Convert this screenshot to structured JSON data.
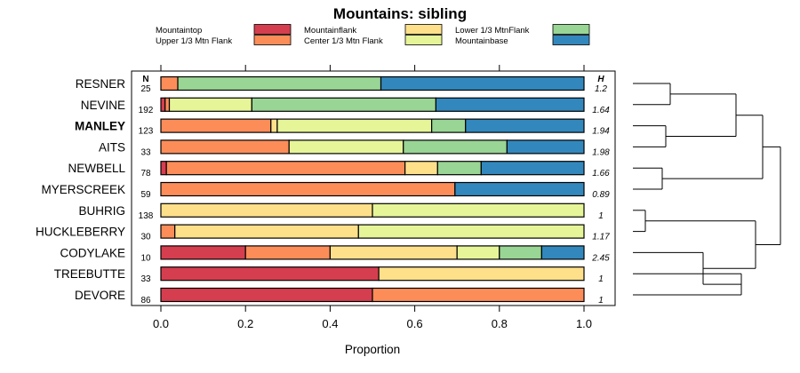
{
  "chart_data": {
    "type": "bar",
    "subtype": "stacked-horizontal-proportion",
    "title": "Mountains: sibling",
    "xlabel": "Proportion",
    "xlim": [
      0,
      1
    ],
    "x_ticks": [
      "0.0",
      "0.2",
      "0.4",
      "0.6",
      "0.8",
      "1.0"
    ],
    "x_tick_values": [
      0,
      0.2,
      0.4,
      0.6,
      0.8,
      1.0
    ],
    "n_header": "N",
    "h_header": "H",
    "legend": [
      {
        "name": "Mountaintop",
        "color": "#d53e4f"
      },
      {
        "name": "Upper 1/3 Mtn Flank",
        "color": "#fc8d59"
      },
      {
        "name": "Mountainflank",
        "color": "#fee08b"
      },
      {
        "name": "Center 1/3 Mtn Flank",
        "color": "#e6f598"
      },
      {
        "name": "Lower 1/3 MtnFlank",
        "color": "#99d594"
      },
      {
        "name": "Mountainbase",
        "color": "#3288bd"
      }
    ],
    "categories_order": [
      "Mountaintop",
      "Upper 1/3 Mtn Flank",
      "Mountainflank",
      "Center 1/3 Mtn Flank",
      "Lower 1/3 MtnFlank",
      "Mountainbase"
    ],
    "rows": [
      {
        "label": "RESNER",
        "bold": false,
        "n": "25",
        "h": "1.2",
        "values": [
          0,
          0.04,
          0,
          0,
          0.48,
          0.48
        ]
      },
      {
        "label": "NEVINE",
        "bold": false,
        "n": "192",
        "h": "1.64",
        "values": [
          0.01,
          0.01,
          0,
          0.195,
          0.435,
          0.35
        ]
      },
      {
        "label": "MANLEY",
        "bold": true,
        "n": "123",
        "h": "1.94",
        "values": [
          0,
          0.26,
          0.015,
          0.365,
          0.08,
          0.28
        ]
      },
      {
        "label": "AITS",
        "bold": false,
        "n": "33",
        "h": "1.98",
        "values": [
          0,
          0.303,
          0,
          0.27,
          0.245,
          0.182
        ]
      },
      {
        "label": "NEWBELL",
        "bold": false,
        "n": "78",
        "h": "1.66",
        "values": [
          0.013,
          0.564,
          0.077,
          0,
          0.103,
          0.243
        ]
      },
      {
        "label": "MYERSCREEK",
        "bold": false,
        "n": "59",
        "h": "0.89",
        "values": [
          0,
          0.695,
          0,
          0,
          0,
          0.305
        ]
      },
      {
        "label": "BUHRIG",
        "bold": false,
        "n": "138",
        "h": "1",
        "values": [
          0,
          0,
          0.5,
          0.5,
          0,
          0
        ]
      },
      {
        "label": "HUCKLEBERRY",
        "bold": false,
        "n": "30",
        "h": "1.17",
        "values": [
          0,
          0.033,
          0.434,
          0.533,
          0,
          0
        ]
      },
      {
        "label": "CODYLAKE",
        "bold": false,
        "n": "10",
        "h": "2.45",
        "values": [
          0.2,
          0.2,
          0.3,
          0.1,
          0.1,
          0.1
        ]
      },
      {
        "label": "TREEBUTTE",
        "bold": false,
        "n": "33",
        "h": "1",
        "values": [
          0.515,
          0,
          0.485,
          0,
          0,
          0
        ]
      },
      {
        "label": "DEVORE",
        "bold": false,
        "n": "86",
        "h": "1",
        "values": [
          0.5,
          0.5,
          0,
          0,
          0,
          0
        ]
      }
    ],
    "dendrogram": "hierarchical clustering tree of the 11 rows: ((((RESNER,NEVINE),(MANLEY,AITS)),(NEWBELL,MYERSCREEK)),((BUHRIG,HUCKLEBERRY),(CODYLAKE,(TREEBUTTE,DEVORE))))"
  }
}
